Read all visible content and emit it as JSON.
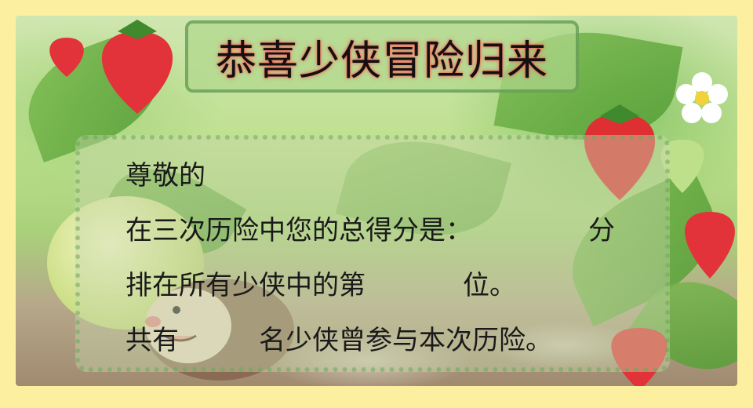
{
  "title": "恭喜少侠冒险归来",
  "certificate": {
    "greeting": "尊敬的",
    "score_line_prefix": "在三次历险中您的总得分是：",
    "score_unit": "分",
    "rank_line_prefix": "排在所有少侠中的第",
    "rank_line_suffix": "位。",
    "count_line_prefix": "共有",
    "count_line_suffix": "名少侠曾参与本次历险。"
  },
  "colors": {
    "page_border": "#fcf0a0",
    "title_glow": "#ff4a4a",
    "text": "#1a1a1a"
  }
}
